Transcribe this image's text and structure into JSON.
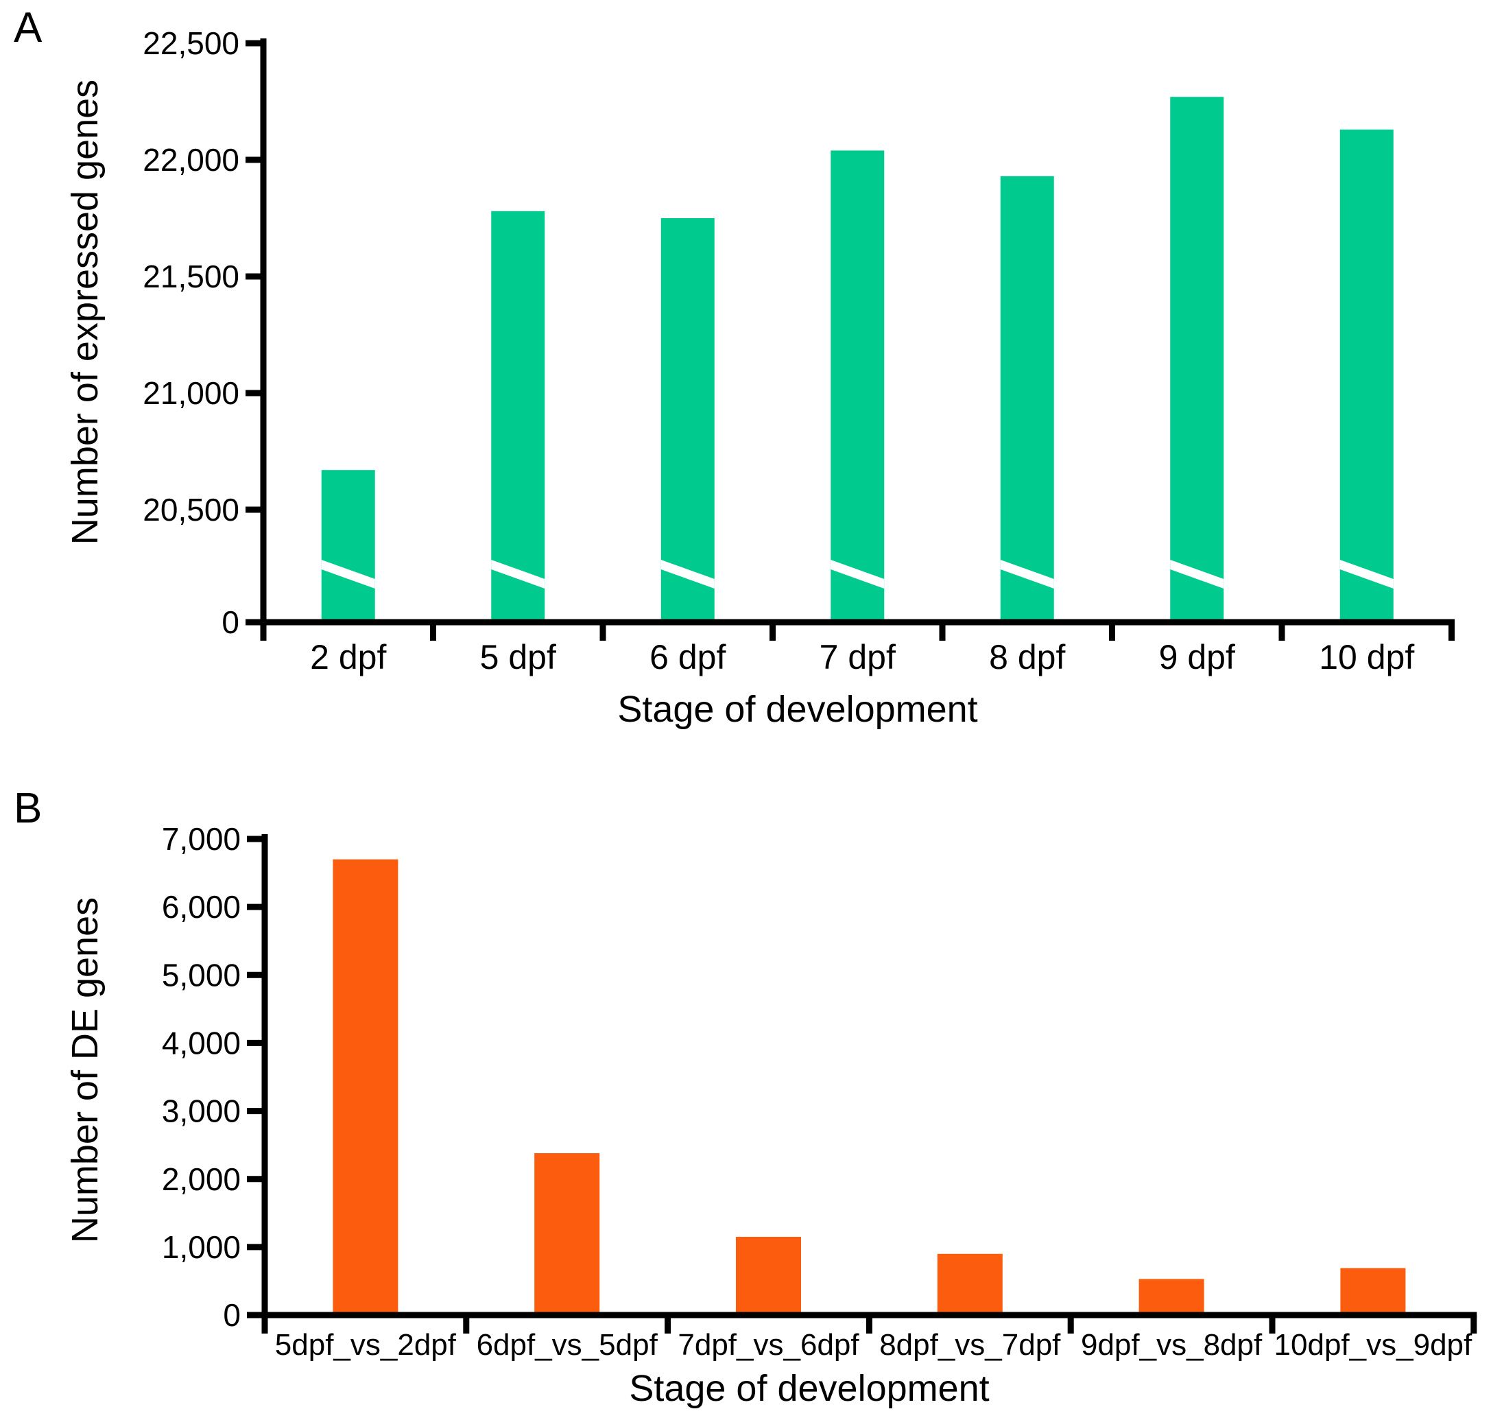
{
  "figure": {
    "background": "#ffffff",
    "panels": [
      {
        "letter": "A"
      },
      {
        "letter": "B"
      }
    ]
  },
  "colors": {
    "panel_a_bar": "#00CA8E",
    "panel_b_bar": "#FB5C0D",
    "axis": "#000000"
  },
  "chart_data": [
    {
      "type": "bar",
      "panel": "A",
      "title": "",
      "xlabel": "Stage of development",
      "ylabel": "Number of expressed genes",
      "categories": [
        "2 dpf",
        "5 dpf",
        "6 dpf",
        "7 dpf",
        "8 dpf",
        "9 dpf",
        "10 dpf"
      ],
      "values": [
        20670,
        21780,
        21750,
        22040,
        21930,
        22270,
        22130
      ],
      "bar_color": "#00CA8E",
      "ytick_values": [
        0,
        20500,
        21000,
        21500,
        22000,
        22500
      ],
      "ytick_labels": [
        "0",
        "20,500",
        "21,000",
        "21,500",
        "22,000",
        "22,500"
      ],
      "ylim": [
        0,
        22500
      ],
      "axis_break": true,
      "grid": false,
      "legend": "none"
    },
    {
      "type": "bar",
      "panel": "B",
      "title": "",
      "xlabel": "Stage of development",
      "ylabel": "Number of DE genes",
      "categories": [
        "5dpf_vs_2dpf",
        "6dpf_vs_5dpf",
        "7dpf_vs_6dpf",
        "8dpf_vs_7dpf",
        "9dpf_vs_8dpf",
        "10dpf_vs_9dpf"
      ],
      "values": [
        6700,
        2380,
        1150,
        900,
        530,
        690
      ],
      "bar_color": "#FB5C0D",
      "ytick_values": [
        0,
        1000,
        2000,
        3000,
        4000,
        5000,
        6000,
        7000
      ],
      "ytick_labels": [
        "0",
        "1,000",
        "2,000",
        "3,000",
        "4,000",
        "5,000",
        "6,000",
        "7,000"
      ],
      "ylim": [
        0,
        7000
      ],
      "axis_break": false,
      "grid": false,
      "legend": "none"
    }
  ]
}
